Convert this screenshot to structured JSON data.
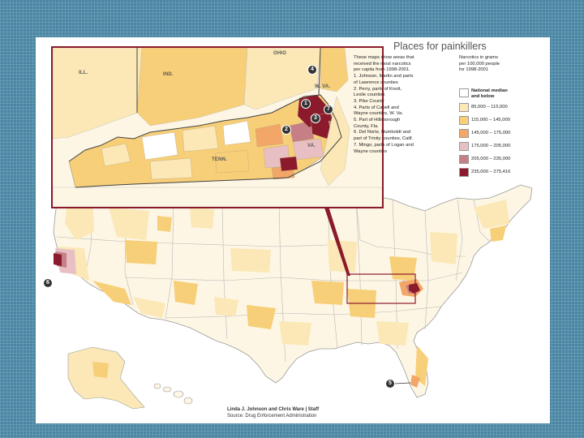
{
  "title": "Places for painkillers",
  "description": [
    "These maps show areas that",
    "received the most narcotics",
    "per capita from 1998-2001.",
    "1. Johnson, Martin and parts",
    "of Lawrence counties",
    "2. Perry, parts of Knott,",
    "Leslie counties",
    "3. Pike County",
    "4. Parts of Cabell and",
    "Wayne counties, W. Va.",
    "5. Part of Hillsborough",
    "County, Fla.",
    "6. Del Norte, Humboldt and",
    "part of Trinity counties, Calif.",
    "7. Mingo, parts of Logan and",
    "Wayne counties"
  ],
  "legend": {
    "heading": [
      "Narcotics in grams",
      "per 100,000 people",
      "for 1998-2001"
    ],
    "items": [
      {
        "label": "National median",
        "label2": "and below",
        "color": "#ffffff",
        "bold": true
      },
      {
        "label": "85,000 – 115,000",
        "color": "#fbe8b6"
      },
      {
        "label": "115,000 – 145,000",
        "color": "#f7cf78"
      },
      {
        "label": "145,000 – 175,000",
        "color": "#f2a668"
      },
      {
        "label": "175,000 – 205,000",
        "color": "#e8c0c4"
      },
      {
        "label": "205,000 – 235,000",
        "color": "#c67f86"
      },
      {
        "label": "235,000 – 275,416",
        "color": "#8b1a2c"
      }
    ]
  },
  "inset_states": {
    "ohio": "OHIO",
    "ill": "ILL.",
    "ind": "IND.",
    "wva": "W. VA.",
    "va": "VA.",
    "tenn": "TENN."
  },
  "inset_markers": [
    "1",
    "2",
    "3",
    "4",
    "7"
  ],
  "map_markers": [
    "6",
    "5"
  ],
  "credit": [
    "Linda J. Johnson and Chris Ware | Staff",
    "Source: Drug Enforcement Administration"
  ],
  "colors": {
    "background": "#4a86a3",
    "highlight": "#8b1a2c"
  }
}
